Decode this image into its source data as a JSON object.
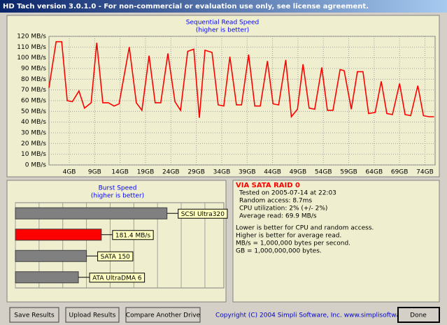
{
  "window": {
    "title": "HD Tach version 3.0.1.0  - For non-commercial or evaluation use only, see license agreement.",
    "buttons": [
      "Save Results",
      "Upload Results",
      "Compare Another Drive"
    ],
    "copyright": "Copyright (C) 2004 Simpli Software, Inc. www.simplisoftware.com",
    "done": "Done"
  },
  "chart_data": [
    {
      "type": "line",
      "title": "Sequential Read Speed",
      "subtitle": "(higher is better)",
      "x": [
        0.0,
        1.4,
        2.5,
        3.6,
        4.6,
        5.9,
        7.0,
        8.3,
        9.4,
        10.6,
        11.7,
        12.8,
        13.8,
        15.8,
        17.2,
        18.3,
        19.7,
        20.9,
        22.0,
        23.4,
        24.8,
        25.9,
        27.3,
        28.5,
        29.6,
        30.7,
        32.1,
        33.3,
        34.4,
        35.6,
        36.9,
        37.9,
        39.3,
        40.5,
        41.6,
        43.0,
        44.1,
        45.2,
        46.6,
        47.7,
        48.9,
        50.0,
        51.2,
        52.3,
        53.7,
        54.8,
        55.9,
        57.3,
        58.1,
        59.5,
        60.7,
        61.8,
        62.9,
        64.2,
        65.4,
        66.5,
        67.6,
        69.0,
        70.1,
        71.2,
        72.6,
        73.7,
        74.8,
        75.8
      ],
      "series": [
        {
          "color": "#ff0000",
          "values": [
            72,
            115,
            115,
            60,
            59,
            69,
            53,
            58,
            114,
            58,
            58,
            55,
            57,
            110,
            58,
            51,
            102,
            58,
            58,
            104,
            59,
            51,
            106,
            108,
            44,
            107,
            105,
            56,
            55,
            101,
            56,
            56,
            103,
            55,
            55,
            97,
            57,
            56,
            98,
            45,
            52,
            94,
            53,
            52,
            91,
            51,
            51,
            89,
            88,
            52,
            87,
            87,
            48,
            49,
            78,
            48,
            47,
            76,
            47,
            46,
            74,
            46,
            45,
            45
          ]
        }
      ],
      "xlim": [
        0,
        76
      ],
      "xticks": [
        {
          "value": 4,
          "label": "4GB"
        },
        {
          "value": 9,
          "label": "9GB"
        },
        {
          "value": 14,
          "label": "14GB"
        },
        {
          "value": 19,
          "label": "19GB"
        },
        {
          "value": 24,
          "label": "24GB"
        },
        {
          "value": 29,
          "label": "29GB"
        },
        {
          "value": 34,
          "label": "34GB"
        },
        {
          "value": 39,
          "label": "39GB"
        },
        {
          "value": 44,
          "label": "44GB"
        },
        {
          "value": 49,
          "label": "49GB"
        },
        {
          "value": 54,
          "label": "54GB"
        },
        {
          "value": 59,
          "label": "59GB"
        },
        {
          "value": 64,
          "label": "64GB"
        },
        {
          "value": 69,
          "label": "69GB"
        },
        {
          "value": 74,
          "label": "74GB"
        }
      ],
      "ylim": [
        0,
        120
      ],
      "yticks": [
        {
          "value": 0,
          "label": "0 MB/s"
        },
        {
          "value": 10,
          "label": "10 MB/s"
        },
        {
          "value": 20,
          "label": "20 MB/s"
        },
        {
          "value": 30,
          "label": "30 MB/s"
        },
        {
          "value": 40,
          "label": "40 MB/s"
        },
        {
          "value": 50,
          "label": "50 MB/s"
        },
        {
          "value": 60,
          "label": "60 MB/s"
        },
        {
          "value": 70,
          "label": "70 MB/s"
        },
        {
          "value": 80,
          "label": "80 MB/s"
        },
        {
          "value": 90,
          "label": "90 MB/s"
        },
        {
          "value": 100,
          "label": "100 MB/s"
        },
        {
          "value": 110,
          "label": "110 MB/s"
        },
        {
          "value": 120,
          "label": "120 MB/s"
        }
      ],
      "grid": true
    },
    {
      "type": "barh",
      "title": "Burst Speed",
      "subtitle": "(higher is better)",
      "categories": [
        "SCSI Ultra320",
        "181.4 MB/s",
        "SATA 150",
        "ATA UltraDMA 6"
      ],
      "values": [
        320,
        181.4,
        150,
        133
      ],
      "colors": [
        "#808080",
        "#ff0000",
        "#808080",
        "#808080"
      ],
      "xlim": [
        0,
        440
      ],
      "xticks": [
        0,
        50,
        100,
        150,
        200,
        250,
        300,
        350,
        400
      ],
      "grid": true
    }
  ],
  "info": {
    "drive": "VIA SATA RAID 0",
    "results": [
      "Tested on 2005-07-14 at 22:03",
      "Random access: 8.7ms",
      "CPU utilization: 2% (+/- 2%)",
      "Average read: 69.9 MB/s"
    ],
    "notes": [
      "Lower is better for CPU and random access.",
      "Higher is better for average read.",
      "MB/s = 1,000,000 bytes per second.",
      "GB = 1,000,000,000 bytes."
    ]
  }
}
